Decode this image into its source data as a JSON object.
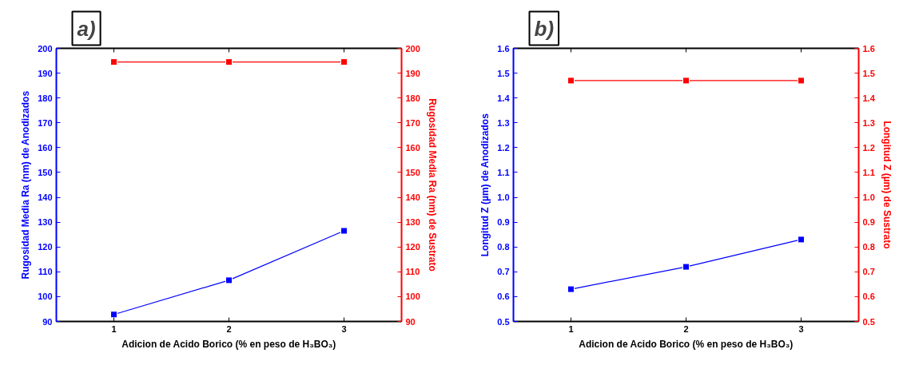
{
  "chart_data": [
    {
      "type": "line",
      "title": "a)",
      "xlabel": "Adicion de Acido Borico (% en peso de H₃BO₃)",
      "ylabel": "Rugosidad Media Ra (nm) de Anodizados",
      "y2label": "Rugosidad Media Ra (nm) de Sustrato",
      "x": [
        1,
        2,
        3
      ],
      "xlim": [
        0.5,
        3.5
      ],
      "xticks": [
        1,
        2,
        3
      ],
      "ylim": [
        90,
        200
      ],
      "yticks": [
        90,
        100,
        110,
        120,
        130,
        140,
        150,
        160,
        170,
        180,
        190,
        200
      ],
      "y2lim": [
        90,
        200
      ],
      "y2ticks": [
        90,
        100,
        110,
        120,
        130,
        140,
        150,
        160,
        170,
        180,
        190,
        200
      ],
      "marker": "square",
      "line_style": "solid",
      "series": [
        {
          "color": "#0000ff",
          "values": [
            92.8,
            106.6,
            126.5
          ]
        },
        {
          "color": "#ff0000",
          "axis": "y2",
          "values": [
            194.5,
            194.5,
            194.5
          ]
        }
      ]
    },
    {
      "type": "line",
      "title": "b)",
      "xlabel": "Adicion de Acido Borico (% en peso de H₃BO₃)",
      "ylabel": "Longitud Z (µm) de Anodizados",
      "y2label": "Longitud Z (µm) de Sustrato",
      "x": [
        1,
        2,
        3
      ],
      "xlim": [
        0.5,
        3.5
      ],
      "xticks": [
        1,
        2,
        3
      ],
      "ylim": [
        0.5,
        1.6
      ],
      "yticks": [
        0.5,
        0.6,
        0.7,
        0.8,
        0.9,
        {
          "value": 1.0,
          "label": "1.0"
        },
        1.1,
        1.2,
        1.3,
        1.4,
        1.5,
        1.6
      ],
      "y2lim": [
        0.5,
        1.6
      ],
      "y2ticks": [
        0.5,
        0.6,
        0.7,
        0.8,
        0.9,
        {
          "value": 1.0,
          "label": "1.0"
        },
        1.1,
        1.2,
        1.3,
        1.4,
        1.5,
        1.6
      ],
      "marker": "square",
      "line_style": "solid",
      "series": [
        {
          "color": "#0000ff",
          "values": [
            0.63,
            0.72,
            0.83
          ]
        },
        {
          "color": "#ff0000",
          "axis": "y2",
          "values": [
            1.47,
            1.47,
            1.47
          ]
        }
      ]
    }
  ]
}
